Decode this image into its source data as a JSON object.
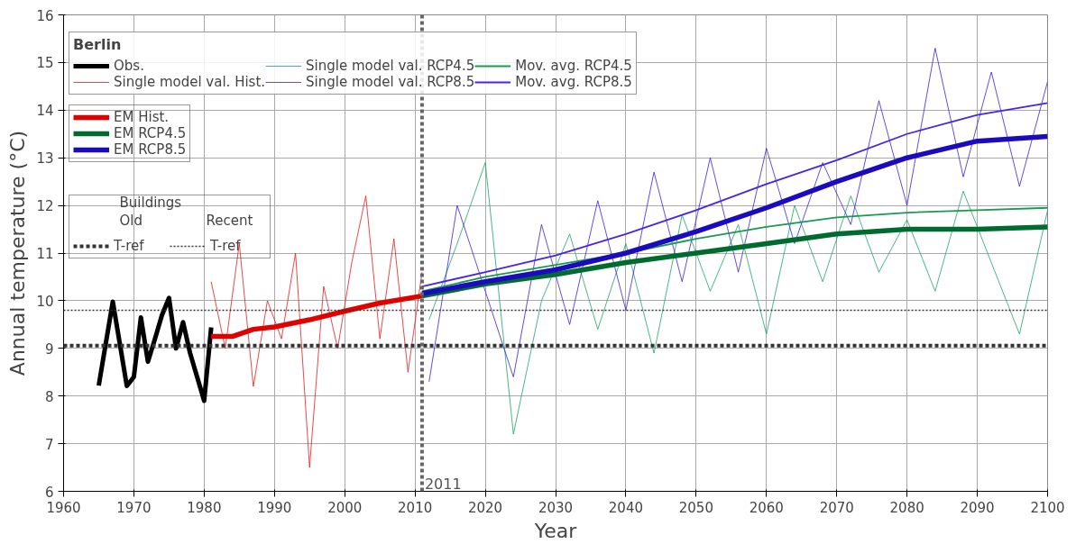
{
  "chart_data": {
    "type": "line",
    "xlabel": "Year",
    "ylabel": "Annual temperature (°C)",
    "legend_title": "Berlin",
    "xlim": [
      1960,
      2100
    ],
    "xticks": [
      1960,
      1970,
      1980,
      1990,
      2000,
      2010,
      2020,
      2030,
      2040,
      2050,
      2060,
      2070,
      2080,
      2090,
      2100
    ],
    "ylim": [
      6,
      16
    ],
    "yticks": [
      6,
      7,
      8,
      9,
      10,
      11,
      12,
      13,
      14,
      15,
      16
    ],
    "grid": true,
    "legend": "top left",
    "series": [
      {
        "name": "Obs.",
        "color": "#000000",
        "x": [
          1965,
          1966,
          1967,
          1968,
          1969,
          1970,
          1971,
          1972,
          1973,
          1974,
          1975,
          1976,
          1977,
          1978,
          1979,
          1980,
          1981
        ],
        "values": [
          8.22,
          9.1,
          9.98,
          9.1,
          8.21,
          8.4,
          9.65,
          8.72,
          9.2,
          9.7,
          10.06,
          9.0,
          9.55,
          8.9,
          8.4,
          7.9,
          9.44
        ]
      },
      {
        "name": "Single model val. Hist.",
        "color": "#e31a1c",
        "x": [
          1981,
          1983,
          1985,
          1987,
          1989,
          1991,
          1993,
          1995,
          1997,
          1999,
          2001,
          2003,
          2005,
          2007,
          2009,
          2011
        ],
        "values": [
          10.4,
          9.0,
          11.2,
          8.2,
          10.0,
          9.2,
          11.0,
          6.5,
          10.3,
          9.0,
          10.8,
          12.2,
          9.2,
          11.3,
          8.5,
          10.6
        ]
      },
      {
        "name": "Single model val. RCP4.5",
        "color": "#1aa36a",
        "x": [
          2012,
          2016,
          2020,
          2024,
          2028,
          2032,
          2036,
          2040,
          2044,
          2048,
          2052,
          2056,
          2060,
          2064,
          2068,
          2072,
          2076,
          2080,
          2084,
          2088,
          2092,
          2096,
          2100
        ],
        "values": [
          9.6,
          11.2,
          12.9,
          7.2,
          10.0,
          11.4,
          9.4,
          11.2,
          8.9,
          11.8,
          10.2,
          11.6,
          9.3,
          12.0,
          10.4,
          12.2,
          10.6,
          11.7,
          10.2,
          12.3,
          10.8,
          9.3,
          11.9
        ]
      },
      {
        "name": "Single model val. RCP8.5",
        "color": "#3a1ee0",
        "x": [
          2012,
          2016,
          2020,
          2024,
          2028,
          2032,
          2036,
          2040,
          2044,
          2048,
          2052,
          2056,
          2060,
          2064,
          2068,
          2072,
          2076,
          2080,
          2084,
          2088,
          2092,
          2096,
          2100
        ],
        "values": [
          8.3,
          12.0,
          10.2,
          8.4,
          11.6,
          9.5,
          12.1,
          9.8,
          12.7,
          10.4,
          13.0,
          10.6,
          13.2,
          11.2,
          12.9,
          11.6,
          14.2,
          12.0,
          15.3,
          12.6,
          14.8,
          12.4,
          14.6
        ]
      },
      {
        "name": "Mov. avg. RCP4.5",
        "color": "#1a9a50",
        "x": [
          2011,
          2020,
          2030,
          2040,
          2050,
          2060,
          2070,
          2080,
          2090,
          2100
        ],
        "values": [
          10.2,
          10.5,
          10.75,
          11.0,
          11.3,
          11.55,
          11.75,
          11.85,
          11.9,
          11.95
        ]
      },
      {
        "name": "Mov. avg. RCP8.5",
        "color": "#4a22e8",
        "x": [
          2011,
          2020,
          2030,
          2040,
          2050,
          2060,
          2070,
          2080,
          2090,
          2100
        ],
        "values": [
          10.3,
          10.6,
          10.95,
          11.4,
          11.9,
          12.45,
          12.95,
          13.5,
          13.9,
          14.15
        ]
      },
      {
        "name": "EM Hist.",
        "color": "#e00000",
        "x": [
          1981,
          1984,
          1987,
          1990,
          1995,
          2000,
          2005,
          2011
        ],
        "values": [
          9.25,
          9.25,
          9.4,
          9.45,
          9.6,
          9.78,
          9.95,
          10.1
        ]
      },
      {
        "name": "EM RCP4.5",
        "color": "#006b2e",
        "x": [
          2011,
          2020,
          2030,
          2040,
          2050,
          2060,
          2070,
          2080,
          2090,
          2100
        ],
        "values": [
          10.1,
          10.35,
          10.55,
          10.8,
          11.0,
          11.2,
          11.4,
          11.5,
          11.5,
          11.55
        ]
      },
      {
        "name": "EM RCP8.5",
        "color": "#1a0bbf",
        "x": [
          2011,
          2020,
          2030,
          2040,
          2050,
          2060,
          2070,
          2080,
          2090,
          2100
        ],
        "values": [
          10.15,
          10.4,
          10.65,
          11.0,
          11.45,
          11.95,
          12.5,
          13.0,
          13.35,
          13.45
        ]
      }
    ],
    "ref_lines": [
      {
        "axis": "y",
        "value": 9.06,
        "label": "T-ref",
        "color": "#333333",
        "line_style": "dashed"
      },
      {
        "axis": "y",
        "value": 9.8,
        "label": "T-ref",
        "color": "#333333",
        "line_style": "dotted"
      },
      {
        "axis": "x",
        "value": 2011,
        "label": "2011",
        "color": "#666666",
        "line_style": "dashed"
      }
    ],
    "annotations": [
      "Buildings",
      "Old",
      "Recent"
    ]
  }
}
